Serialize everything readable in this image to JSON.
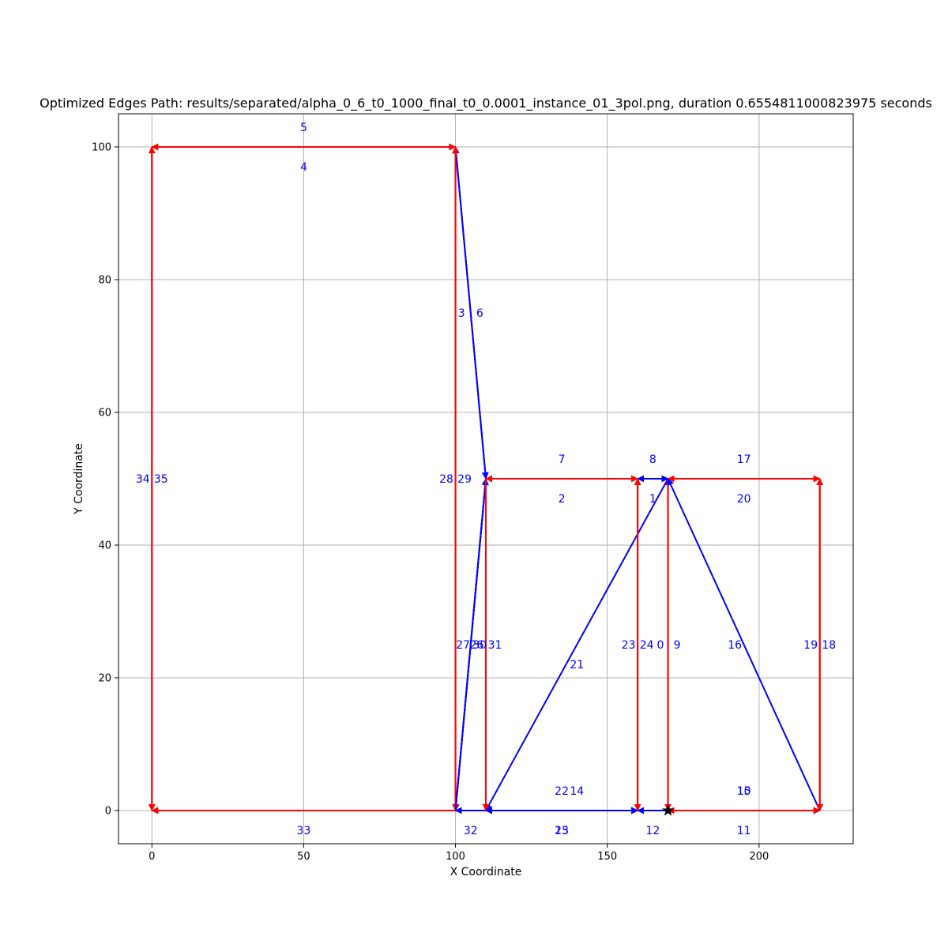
{
  "chart_data": {
    "type": "line",
    "title": "Optimized Edges Path: results/separated/alpha_0_6_t0_1000_final_t0_0.0001_instance_01_3pol.png, duration 0.6554811000823975 seconds",
    "xlabel": "X Coordinate",
    "ylabel": "Y Coordinate",
    "xlim": [
      -11,
      231
    ],
    "ylim": [
      -5,
      105
    ],
    "xticks": [
      0,
      50,
      100,
      150,
      200
    ],
    "yticks": [
      0,
      20,
      40,
      60,
      80,
      100
    ],
    "grid": true,
    "colors": {
      "red": "#ff0000",
      "blue": "#0000ff",
      "label": "#0000ff",
      "grid": "#b0b0b0",
      "start": "#000000"
    },
    "start_marker": {
      "x": 170,
      "y": 0,
      "shape": "star"
    },
    "edges": [
      {
        "id": "0",
        "from": [
          170,
          0
        ],
        "to": [
          170,
          50
        ],
        "color": "red"
      },
      {
        "id": "1",
        "from": [
          170,
          50
        ],
        "to": [
          160,
          50
        ],
        "color": "blue"
      },
      {
        "id": "2",
        "from": [
          160,
          50
        ],
        "to": [
          110,
          50
        ],
        "color": "red"
      },
      {
        "id": "3",
        "from": [
          110,
          50
        ],
        "to": [
          100,
          100
        ],
        "color": "blue"
      },
      {
        "id": "4",
        "from": [
          100,
          100
        ],
        "to": [
          0,
          100
        ],
        "color": "red"
      },
      {
        "id": "5",
        "from": [
          0,
          100
        ],
        "to": [
          100,
          100
        ],
        "color": "red"
      },
      {
        "id": "6",
        "from": [
          100,
          100
        ],
        "to": [
          110,
          50
        ],
        "color": "blue"
      },
      {
        "id": "7",
        "from": [
          110,
          50
        ],
        "to": [
          160,
          50
        ],
        "color": "red"
      },
      {
        "id": "8",
        "from": [
          160,
          50
        ],
        "to": [
          170,
          50
        ],
        "color": "blue"
      },
      {
        "id": "9",
        "from": [
          170,
          50
        ],
        "to": [
          170,
          0
        ],
        "color": "red"
      },
      {
        "id": "10",
        "from": [
          170,
          0
        ],
        "to": [
          220,
          0
        ],
        "color": "red"
      },
      {
        "id": "11",
        "from": [
          220,
          0
        ],
        "to": [
          170,
          0
        ],
        "color": "red"
      },
      {
        "id": "12",
        "from": [
          170,
          0
        ],
        "to": [
          160,
          0
        ],
        "color": "blue"
      },
      {
        "id": "13",
        "from": [
          160,
          0
        ],
        "to": [
          110,
          0
        ],
        "color": "blue"
      },
      {
        "id": "14",
        "from": [
          110,
          0
        ],
        "to": [
          160,
          0
        ],
        "color": "blue"
      },
      {
        "id": "15",
        "from": [
          170,
          0
        ],
        "to": [
          220,
          0
        ],
        "color": "red"
      },
      {
        "id": "16",
        "from": [
          220,
          0
        ],
        "to": [
          170,
          50
        ],
        "color": "blue"
      },
      {
        "id": "17",
        "from": [
          170,
          50
        ],
        "to": [
          220,
          50
        ],
        "color": "red"
      },
      {
        "id": "18",
        "from": [
          220,
          50
        ],
        "to": [
          220,
          0
        ],
        "color": "red"
      },
      {
        "id": "19",
        "from": [
          220,
          0
        ],
        "to": [
          220,
          50
        ],
        "color": "red"
      },
      {
        "id": "20",
        "from": [
          220,
          50
        ],
        "to": [
          170,
          50
        ],
        "color": "red"
      },
      {
        "id": "21",
        "from": [
          170,
          50
        ],
        "to": [
          110,
          0
        ],
        "color": "blue"
      },
      {
        "id": "22",
        "from": [
          110,
          0
        ],
        "to": [
          160,
          0
        ],
        "color": "blue"
      },
      {
        "id": "23",
        "from": [
          160,
          0
        ],
        "to": [
          160,
          50
        ],
        "color": "red"
      },
      {
        "id": "24",
        "from": [
          160,
          50
        ],
        "to": [
          160,
          0
        ],
        "color": "red"
      },
      {
        "id": "25",
        "from": [
          160,
          0
        ],
        "to": [
          110,
          0
        ],
        "color": "blue"
      },
      {
        "id": "26",
        "from": [
          100,
          0
        ],
        "to": [
          110,
          50
        ],
        "color": "blue"
      },
      {
        "id": "27",
        "from": [
          110,
          50
        ],
        "to": [
          100,
          0
        ],
        "color": "blue"
      },
      {
        "id": "28",
        "from": [
          100,
          0
        ],
        "to": [
          100,
          100
        ],
        "color": "red"
      },
      {
        "id": "29",
        "from": [
          100,
          100
        ],
        "to": [
          100,
          0
        ],
        "color": "red"
      },
      {
        "id": "30",
        "from": [
          100,
          0
        ],
        "to": [
          110,
          50
        ],
        "color": "blue"
      },
      {
        "id": "31",
        "from": [
          110,
          50
        ],
        "to": [
          110,
          0
        ],
        "color": "red"
      },
      {
        "id": "32",
        "from": [
          110,
          0
        ],
        "to": [
          100,
          0
        ],
        "color": "blue"
      },
      {
        "id": "33",
        "from": [
          100,
          0
        ],
        "to": [
          0,
          0
        ],
        "color": "red"
      },
      {
        "id": "34",
        "from": [
          0,
          0
        ],
        "to": [
          0,
          100
        ],
        "color": "red"
      },
      {
        "id": "35",
        "from": [
          0,
          100
        ],
        "to": [
          0,
          0
        ],
        "color": "red"
      }
    ],
    "edge_labels": [
      {
        "text": "5",
        "x": 50,
        "y": 103
      },
      {
        "text": "4",
        "x": 50,
        "y": 97
      },
      {
        "text": "3",
        "x": 102,
        "y": 75
      },
      {
        "text": "6",
        "x": 108,
        "y": 75
      },
      {
        "text": "7",
        "x": 135,
        "y": 53
      },
      {
        "text": "2",
        "x": 135,
        "y": 47
      },
      {
        "text": "8",
        "x": 165,
        "y": 53
      },
      {
        "text": "1",
        "x": 165,
        "y": 47
      },
      {
        "text": "17",
        "x": 195,
        "y": 53
      },
      {
        "text": "20",
        "x": 195,
        "y": 47
      },
      {
        "text": "34",
        "x": -3,
        "y": 50
      },
      {
        "text": "35",
        "x": 3,
        "y": 50
      },
      {
        "text": "28",
        "x": 97,
        "y": 50
      },
      {
        "text": "29",
        "x": 103,
        "y": 50
      },
      {
        "text": "27",
        "x": 102.5,
        "y": 25
      },
      {
        "text": "26",
        "x": 107,
        "y": 25
      },
      {
        "text": "30",
        "x": 108,
        "y": 25
      },
      {
        "text": "31",
        "x": 113,
        "y": 25
      },
      {
        "text": "21",
        "x": 140,
        "y": 22
      },
      {
        "text": "23",
        "x": 157,
        "y": 25
      },
      {
        "text": "24",
        "x": 163,
        "y": 25
      },
      {
        "text": "0",
        "x": 167.5,
        "y": 25
      },
      {
        "text": "9",
        "x": 173,
        "y": 25
      },
      {
        "text": "16",
        "x": 192,
        "y": 25
      },
      {
        "text": "19",
        "x": 217,
        "y": 25
      },
      {
        "text": "18",
        "x": 223,
        "y": 25
      },
      {
        "text": "22",
        "x": 135,
        "y": 3
      },
      {
        "text": "14",
        "x": 140,
        "y": 3
      },
      {
        "text": "10",
        "x": 195,
        "y": 3
      },
      {
        "text": "15",
        "x": 195,
        "y": 3
      },
      {
        "text": "33",
        "x": 50,
        "y": -3
      },
      {
        "text": "32",
        "x": 105,
        "y": -3
      },
      {
        "text": "25",
        "x": 135,
        "y": -3
      },
      {
        "text": "13",
        "x": 135,
        "y": -3
      },
      {
        "text": "12",
        "x": 165,
        "y": -3
      },
      {
        "text": "11",
        "x": 195,
        "y": -3
      }
    ]
  }
}
